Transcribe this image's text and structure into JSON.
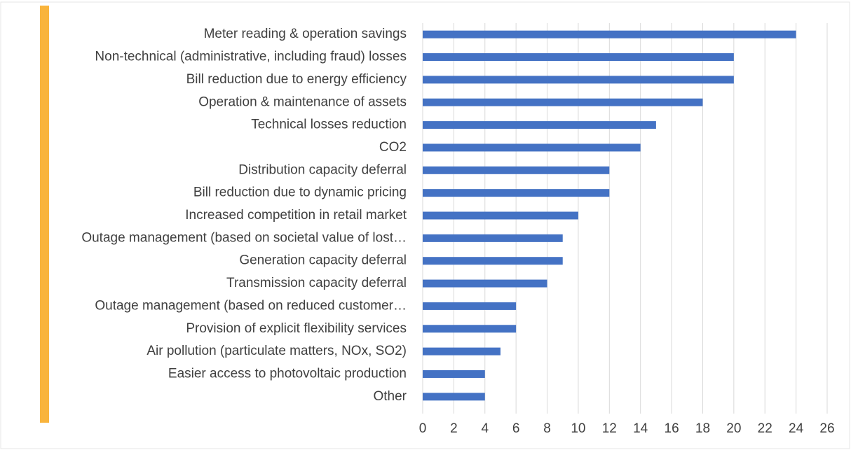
{
  "chart_data": {
    "type": "bar",
    "orientation": "horizontal",
    "categories": [
      "Meter reading & operation savings",
      "Non-technical (administrative, including fraud) losses",
      "Bill reduction due to energy efficiency",
      "Operation & maintenance of assets",
      "Technical losses reduction",
      "CO2",
      "Distribution capacity deferral",
      "Bill reduction due to dynamic pricing",
      "Increased competition in retail market",
      "Outage management (based on societal value of lost…",
      "Generation capacity deferral",
      "Transmission capacity deferral",
      "Outage management (based on reduced customer…",
      "Provision of explicit flexibility services",
      "Air pollution (particulate matters, NOx, SO2)",
      "Easier access to photovoltaic production",
      "Other"
    ],
    "values": [
      24,
      20,
      20,
      18,
      15,
      14,
      12,
      12,
      10,
      9,
      9,
      8,
      6,
      6,
      5,
      4,
      4
    ],
    "color": "#4472c4",
    "xlim": [
      0,
      26
    ],
    "xticks": [
      0,
      2,
      4,
      6,
      8,
      10,
      12,
      14,
      16,
      18,
      20,
      22,
      24,
      26
    ],
    "grid": true
  }
}
